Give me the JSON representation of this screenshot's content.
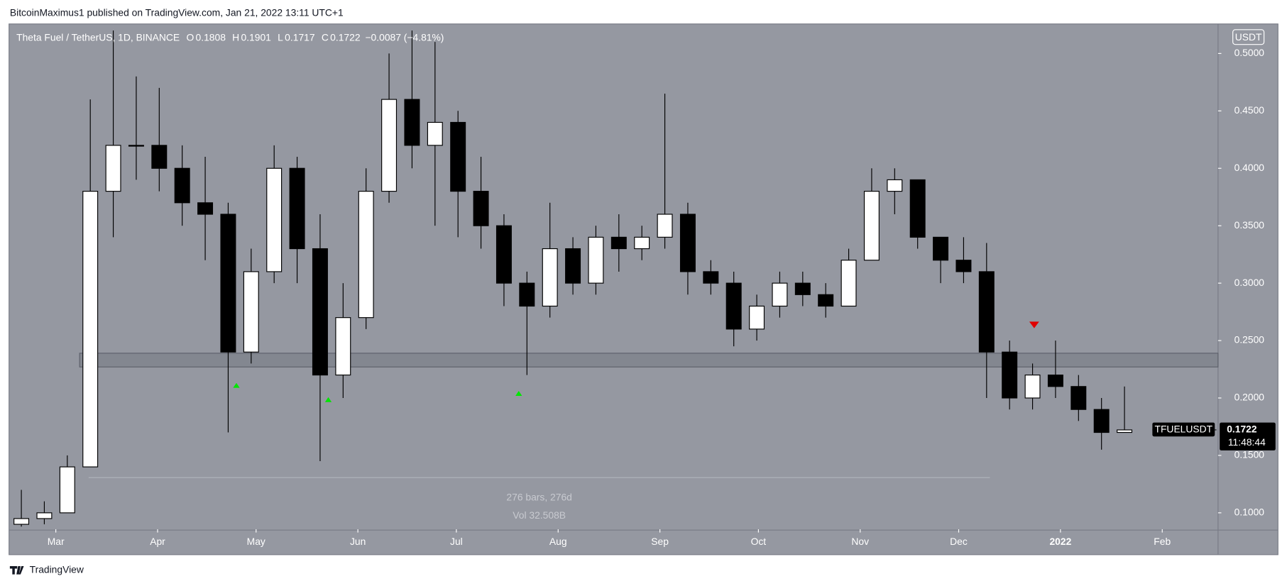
{
  "header": {
    "publisher": "BitcoinMaximus1 published on TradingView.com, Jan 21, 2022 13:11 UTC+1",
    "footer": "TradingView"
  },
  "chart_data": {
    "type": "candlestick",
    "legend": {
      "symbol": "Theta Fuel / TetherUS, 1D, BINANCE",
      "o_label": "O",
      "o": "0.1808",
      "h_label": "H",
      "h": "0.1901",
      "l_label": "L",
      "l": "0.1717",
      "c_label": "C",
      "c": "0.1722",
      "change": "−0.0087 (−4.81%)"
    },
    "currency": "USDT",
    "ticker": "TFUELUSDT",
    "last_price": {
      "value": 0.1722,
      "label": "0.1722"
    },
    "countdown": "11:48:44",
    "xlim": [
      -14,
      354
    ],
    "ylim": [
      0.0857,
      0.525
    ],
    "yticks": [
      {
        "value": 0.1,
        "label": "0.1000"
      },
      {
        "value": 0.15,
        "label": "0.1500"
      },
      {
        "value": 0.2,
        "label": "0.2000"
      },
      {
        "value": 0.25,
        "label": "0.2500"
      },
      {
        "value": 0.3,
        "label": "0.3000"
      },
      {
        "value": 0.35,
        "label": "0.3500"
      },
      {
        "value": 0.4,
        "label": "0.4000"
      },
      {
        "value": 0.45,
        "label": "0.4500"
      },
      {
        "value": 0.5,
        "label": "0.5000"
      }
    ],
    "xticks": [
      {
        "value": 0,
        "label": "Mar"
      },
      {
        "value": 31,
        "label": "Apr"
      },
      {
        "value": 61,
        "label": "May"
      },
      {
        "value": 92,
        "label": "Jun"
      },
      {
        "value": 122,
        "label": "Jul"
      },
      {
        "value": 153,
        "label": "Aug"
      },
      {
        "value": 184,
        "label": "Sep"
      },
      {
        "value": 214,
        "label": "Oct"
      },
      {
        "value": 245,
        "label": "Nov"
      },
      {
        "value": 275,
        "label": "Dec"
      },
      {
        "value": 306,
        "label": "2022"
      },
      {
        "value": 337,
        "label": "Feb"
      }
    ],
    "x": [
      -14,
      -7,
      0,
      7,
      14,
      21,
      28,
      35,
      42,
      49,
      56,
      63,
      70,
      77,
      84,
      91,
      98,
      105,
      112,
      119,
      126,
      133,
      140,
      147,
      154,
      161,
      168,
      175,
      182,
      189,
      196,
      203,
      210,
      217,
      224,
      231,
      238,
      245,
      252,
      259,
      266,
      273,
      280,
      287,
      294,
      301,
      308,
      315,
      322
    ],
    "open": [
      0.09,
      0.095,
      0.1,
      0.14,
      0.38,
      0.42,
      0.42,
      0.4,
      0.37,
      0.36,
      0.24,
      0.31,
      0.4,
      0.33,
      0.22,
      0.27,
      0.38,
      0.46,
      0.42,
      0.44,
      0.38,
      0.35,
      0.3,
      0.28,
      0.33,
      0.3,
      0.34,
      0.33,
      0.34,
      0.36,
      0.31,
      0.3,
      0.26,
      0.28,
      0.3,
      0.29,
      0.28,
      0.32,
      0.38,
      0.39,
      0.34,
      0.32,
      0.31,
      0.24,
      0.2,
      0.22,
      0.21,
      0.19,
      0.17
    ],
    "high": [
      0.12,
      0.11,
      0.15,
      0.46,
      0.52,
      0.48,
      0.47,
      0.42,
      0.41,
      0.37,
      0.33,
      0.42,
      0.41,
      0.36,
      0.3,
      0.4,
      0.5,
      0.52,
      0.51,
      0.45,
      0.41,
      0.36,
      0.31,
      0.37,
      0.34,
      0.35,
      0.36,
      0.35,
      0.465,
      0.37,
      0.32,
      0.31,
      0.29,
      0.31,
      0.31,
      0.3,
      0.33,
      0.4,
      0.4,
      0.39,
      0.34,
      0.34,
      0.335,
      0.25,
      0.23,
      0.25,
      0.22,
      0.2,
      0.21
    ],
    "low": [
      0.088,
      0.09,
      0.1,
      0.14,
      0.34,
      0.39,
      0.38,
      0.35,
      0.32,
      0.17,
      0.23,
      0.3,
      0.3,
      0.145,
      0.2,
      0.26,
      0.37,
      0.4,
      0.35,
      0.34,
      0.33,
      0.28,
      0.22,
      0.27,
      0.29,
      0.29,
      0.31,
      0.32,
      0.33,
      0.29,
      0.29,
      0.245,
      0.25,
      0.27,
      0.28,
      0.27,
      0.28,
      0.32,
      0.36,
      0.33,
      0.3,
      0.3,
      0.2,
      0.19,
      0.19,
      0.2,
      0.18,
      0.155,
      0.17
    ],
    "close": [
      0.095,
      0.1,
      0.14,
      0.38,
      0.42,
      0.42,
      0.4,
      0.37,
      0.36,
      0.24,
      0.31,
      0.4,
      0.33,
      0.22,
      0.27,
      0.38,
      0.46,
      0.42,
      0.44,
      0.38,
      0.35,
      0.3,
      0.28,
      0.33,
      0.3,
      0.34,
      0.33,
      0.34,
      0.36,
      0.31,
      0.3,
      0.26,
      0.28,
      0.3,
      0.29,
      0.28,
      0.32,
      0.38,
      0.39,
      0.34,
      0.32,
      0.31,
      0.24,
      0.2,
      0.22,
      0.21,
      0.19,
      0.17,
      0.1722
    ],
    "band": [
      0.227,
      0.239
    ],
    "markers": [
      {
        "x": 55,
        "y": 0.211,
        "color": "#00e600"
      },
      {
        "x": 83,
        "y": 0.1986,
        "color": "#00e600"
      },
      {
        "x": 141,
        "y": 0.204,
        "color": "#00e600"
      },
      {
        "x": 298,
        "y": 0.2636,
        "color": "#e00000"
      }
    ],
    "measure": {
      "x": [
        10,
        284.5
      ],
      "y": 0.1307,
      "bars": "276 bars, 276d",
      "vol": "Vol 32.508B"
    }
  }
}
